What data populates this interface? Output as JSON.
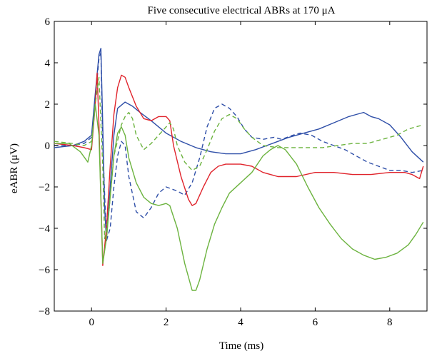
{
  "chart_data": {
    "type": "line",
    "title": "Five consecutive electrical ABRs at 170 μA",
    "xlabel": "Time (ms)",
    "ylabel": "eABR (μV)",
    "xlim": [
      -1,
      9
    ],
    "ylim": [
      -8,
      6
    ],
    "xticks": [
      0,
      2,
      4,
      6,
      8
    ],
    "yticks": [
      -8,
      -6,
      -4,
      -2,
      0,
      2,
      4,
      6
    ],
    "xtick_labels": [
      "0",
      "2",
      "4",
      "6",
      "8"
    ],
    "ytick_labels": [
      "−8",
      "−6",
      "−4",
      "−2",
      "0",
      "2",
      "4",
      "6"
    ],
    "grid": false,
    "legend": "none",
    "series": [
      {
        "color": "#2f4fa8",
        "dash": "solid",
        "points": [
          [
            -1,
            -0.1
          ],
          [
            -0.5,
            0.0
          ],
          [
            -0.2,
            0.2
          ],
          [
            0,
            0.5
          ],
          [
            0.1,
            2.5
          ],
          [
            0.2,
            4.4
          ],
          [
            0.25,
            4.7
          ],
          [
            0.3,
            1.0
          ],
          [
            0.35,
            -3.0
          ],
          [
            0.4,
            -4.6
          ],
          [
            0.5,
            -2.0
          ],
          [
            0.6,
            0.5
          ],
          [
            0.7,
            1.8
          ],
          [
            0.9,
            2.1
          ],
          [
            1.1,
            1.9
          ],
          [
            1.3,
            1.6
          ],
          [
            1.6,
            1.2
          ],
          [
            2.0,
            0.6
          ],
          [
            2.4,
            0.2
          ],
          [
            2.8,
            -0.1
          ],
          [
            3.2,
            -0.3
          ],
          [
            3.6,
            -0.4
          ],
          [
            4.0,
            -0.4
          ],
          [
            4.4,
            -0.2
          ],
          [
            4.7,
            0.0
          ],
          [
            5.0,
            0.2
          ],
          [
            5.3,
            0.4
          ],
          [
            5.7,
            0.6
          ],
          [
            6.1,
            0.8
          ],
          [
            6.5,
            1.1
          ],
          [
            6.9,
            1.4
          ],
          [
            7.1,
            1.5
          ],
          [
            7.3,
            1.6
          ],
          [
            7.5,
            1.4
          ],
          [
            7.7,
            1.3
          ],
          [
            8.0,
            1.0
          ],
          [
            8.3,
            0.4
          ],
          [
            8.6,
            -0.3
          ],
          [
            8.9,
            -0.8
          ]
        ]
      },
      {
        "color": "#2f4fa8",
        "dash": "dashed",
        "points": [
          [
            -1,
            0.0
          ],
          [
            -0.5,
            0.0
          ],
          [
            -0.2,
            0.1
          ],
          [
            0,
            0.4
          ],
          [
            0.1,
            2.2
          ],
          [
            0.2,
            4.2
          ],
          [
            0.25,
            4.5
          ],
          [
            0.3,
            0.0
          ],
          [
            0.4,
            -4.6
          ],
          [
            0.5,
            -4.0
          ],
          [
            0.6,
            -2.0
          ],
          [
            0.7,
            -0.5
          ],
          [
            0.8,
            0.2
          ],
          [
            0.9,
            0.0
          ],
          [
            1.0,
            -1.5
          ],
          [
            1.2,
            -3.2
          ],
          [
            1.4,
            -3.5
          ],
          [
            1.6,
            -3.0
          ],
          [
            1.8,
            -2.3
          ],
          [
            2.0,
            -2.0
          ],
          [
            2.3,
            -2.2
          ],
          [
            2.5,
            -2.4
          ],
          [
            2.7,
            -1.8
          ],
          [
            2.9,
            -0.6
          ],
          [
            3.1,
            0.9
          ],
          [
            3.3,
            1.8
          ],
          [
            3.5,
            2.0
          ],
          [
            3.7,
            1.8
          ],
          [
            3.9,
            1.4
          ],
          [
            4.1,
            0.8
          ],
          [
            4.3,
            0.4
          ],
          [
            4.6,
            0.3
          ],
          [
            4.9,
            0.4
          ],
          [
            5.1,
            0.3
          ],
          [
            5.4,
            0.5
          ],
          [
            5.6,
            0.6
          ],
          [
            5.9,
            0.5
          ],
          [
            6.2,
            0.2
          ],
          [
            6.5,
            0.0
          ],
          [
            6.8,
            -0.2
          ],
          [
            7.1,
            -0.5
          ],
          [
            7.4,
            -0.8
          ],
          [
            7.7,
            -1.0
          ],
          [
            8.0,
            -1.2
          ],
          [
            8.3,
            -1.2
          ],
          [
            8.6,
            -1.3
          ],
          [
            8.9,
            -1.2
          ]
        ]
      },
      {
        "color": "#e0232b",
        "dash": "solid",
        "points": [
          [
            -1,
            0.1
          ],
          [
            -0.5,
            0.0
          ],
          [
            -0.2,
            -0.1
          ],
          [
            0,
            -0.2
          ],
          [
            0.1,
            2.0
          ],
          [
            0.15,
            3.5
          ],
          [
            0.2,
            1.0
          ],
          [
            0.3,
            -5.8
          ],
          [
            0.4,
            -4.0
          ],
          [
            0.5,
            -1.0
          ],
          [
            0.6,
            1.5
          ],
          [
            0.7,
            2.8
          ],
          [
            0.8,
            3.4
          ],
          [
            0.9,
            3.3
          ],
          [
            1.0,
            2.8
          ],
          [
            1.2,
            1.9
          ],
          [
            1.4,
            1.3
          ],
          [
            1.6,
            1.2
          ],
          [
            1.8,
            1.4
          ],
          [
            2.0,
            1.4
          ],
          [
            2.1,
            1.2
          ],
          [
            2.2,
            0.0
          ],
          [
            2.4,
            -1.5
          ],
          [
            2.6,
            -2.6
          ],
          [
            2.7,
            -2.9
          ],
          [
            2.8,
            -2.8
          ],
          [
            3.0,
            -2.0
          ],
          [
            3.2,
            -1.3
          ],
          [
            3.4,
            -1.0
          ],
          [
            3.6,
            -0.9
          ],
          [
            3.8,
            -0.9
          ],
          [
            4.0,
            -0.9
          ],
          [
            4.3,
            -1.0
          ],
          [
            4.6,
            -1.3
          ],
          [
            5.0,
            -1.5
          ],
          [
            5.5,
            -1.5
          ],
          [
            6.0,
            -1.3
          ],
          [
            6.5,
            -1.3
          ],
          [
            7.0,
            -1.4
          ],
          [
            7.5,
            -1.4
          ],
          [
            8.0,
            -1.3
          ],
          [
            8.4,
            -1.3
          ],
          [
            8.6,
            -1.4
          ],
          [
            8.8,
            -1.6
          ],
          [
            8.9,
            -1.0
          ]
        ]
      },
      {
        "color": "#6cb33f",
        "dash": "dashed",
        "points": [
          [
            -1,
            0.2
          ],
          [
            -0.5,
            0.1
          ],
          [
            -0.2,
            0.0
          ],
          [
            0,
            0.2
          ],
          [
            0.1,
            2.0
          ],
          [
            0.2,
            3.3
          ],
          [
            0.3,
            -1.0
          ],
          [
            0.35,
            -4.5
          ],
          [
            0.45,
            -3.5
          ],
          [
            0.6,
            -0.5
          ],
          [
            0.8,
            1.0
          ],
          [
            0.9,
            1.4
          ],
          [
            1.0,
            1.6
          ],
          [
            1.1,
            1.3
          ],
          [
            1.2,
            0.5
          ],
          [
            1.4,
            -0.2
          ],
          [
            1.6,
            0.1
          ],
          [
            1.8,
            0.5
          ],
          [
            2.0,
            0.9
          ],
          [
            2.1,
            1.1
          ],
          [
            2.2,
            0.8
          ],
          [
            2.3,
            0.0
          ],
          [
            2.5,
            -0.8
          ],
          [
            2.7,
            -1.2
          ],
          [
            2.9,
            -1.0
          ],
          [
            3.1,
            -0.2
          ],
          [
            3.3,
            0.7
          ],
          [
            3.5,
            1.3
          ],
          [
            3.7,
            1.5
          ],
          [
            3.9,
            1.3
          ],
          [
            4.1,
            0.8
          ],
          [
            4.3,
            0.4
          ],
          [
            4.6,
            0.0
          ],
          [
            5.0,
            -0.1
          ],
          [
            5.4,
            -0.1
          ],
          [
            5.8,
            -0.1
          ],
          [
            6.2,
            -0.1
          ],
          [
            6.6,
            0.0
          ],
          [
            7.0,
            0.1
          ],
          [
            7.4,
            0.1
          ],
          [
            7.8,
            0.3
          ],
          [
            8.2,
            0.5
          ],
          [
            8.5,
            0.8
          ],
          [
            8.9,
            1.0
          ]
        ]
      },
      {
        "color": "#6cb33f",
        "dash": "solid",
        "points": [
          [
            -1,
            0.1
          ],
          [
            -0.6,
            0.1
          ],
          [
            -0.3,
            -0.3
          ],
          [
            -0.1,
            -0.8
          ],
          [
            0,
            0.0
          ],
          [
            0.1,
            2.0
          ],
          [
            0.2,
            0.5
          ],
          [
            0.3,
            -5.7
          ],
          [
            0.4,
            -4.5
          ],
          [
            0.5,
            -2.5
          ],
          [
            0.6,
            -0.5
          ],
          [
            0.7,
            0.6
          ],
          [
            0.8,
            0.9
          ],
          [
            0.9,
            0.5
          ],
          [
            1.0,
            -0.6
          ],
          [
            1.2,
            -1.8
          ],
          [
            1.4,
            -2.5
          ],
          [
            1.6,
            -2.8
          ],
          [
            1.8,
            -2.9
          ],
          [
            2.0,
            -2.8
          ],
          [
            2.1,
            -2.9
          ],
          [
            2.3,
            -4.0
          ],
          [
            2.5,
            -5.7
          ],
          [
            2.7,
            -7.0
          ],
          [
            2.8,
            -7.0
          ],
          [
            2.9,
            -6.5
          ],
          [
            3.1,
            -5.0
          ],
          [
            3.3,
            -3.8
          ],
          [
            3.5,
            -3.0
          ],
          [
            3.7,
            -2.3
          ],
          [
            4.0,
            -1.8
          ],
          [
            4.3,
            -1.3
          ],
          [
            4.6,
            -0.5
          ],
          [
            4.8,
            -0.2
          ],
          [
            5.0,
            0.0
          ],
          [
            5.2,
            -0.2
          ],
          [
            5.5,
            -0.9
          ],
          [
            5.8,
            -2.0
          ],
          [
            6.1,
            -3.0
          ],
          [
            6.4,
            -3.8
          ],
          [
            6.7,
            -4.5
          ],
          [
            7.0,
            -5.0
          ],
          [
            7.3,
            -5.3
          ],
          [
            7.6,
            -5.5
          ],
          [
            7.9,
            -5.4
          ],
          [
            8.2,
            -5.2
          ],
          [
            8.5,
            -4.8
          ],
          [
            8.7,
            -4.3
          ],
          [
            8.9,
            -3.7
          ]
        ]
      }
    ]
  }
}
